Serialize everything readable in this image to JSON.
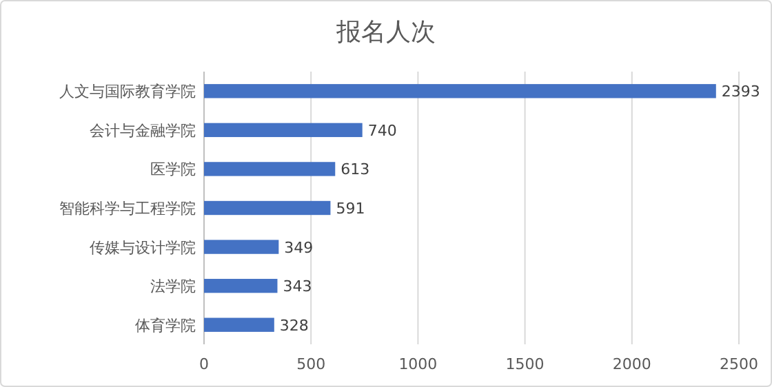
{
  "chart_data": {
    "type": "bar",
    "orientation": "horizontal",
    "title": "报名人次",
    "categories": [
      "人文与国际教育学院",
      "会计与金融学院",
      "医学院",
      "智能科学与工程学院",
      "传媒与设计学院",
      "法学院",
      "体育学院"
    ],
    "values": [
      2393,
      740,
      613,
      591,
      349,
      343,
      328
    ],
    "color": "#4472c4",
    "xlim": [
      0,
      2500
    ],
    "xticks": [
      0,
      500,
      1000,
      1500,
      2000,
      2500
    ],
    "grid": "x",
    "data_labels": true
  }
}
